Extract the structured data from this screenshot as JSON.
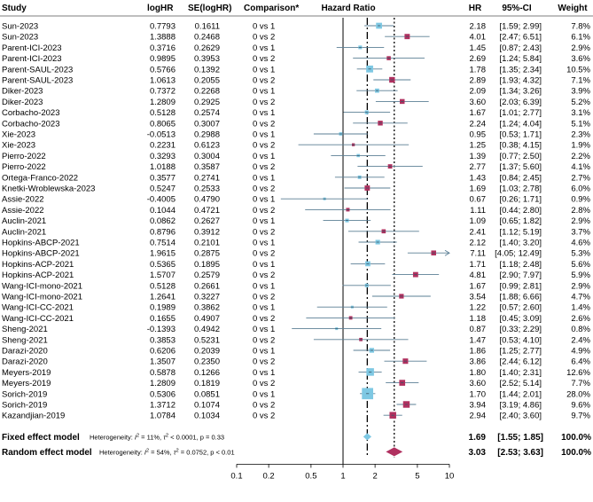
{
  "chart_data": {
    "type": "forest",
    "headers": {
      "study": "Study",
      "loghr": "logHR",
      "se": "SE(logHR)",
      "comparison": "Comparison*",
      "plot": "Hazard Ratio",
      "hr": "HR",
      "ci": "95%-CI",
      "weight": "Weight"
    },
    "x_axis": {
      "scale": "log",
      "range": [
        0.1,
        10
      ],
      "ticks": [
        "0.1",
        "0.2",
        "0.5",
        "1",
        "2",
        "5",
        "10"
      ],
      "reference_line": 1,
      "fixed_line": 1.69,
      "random_line": 3.03
    },
    "colors": {
      "vs1": "#7ec8e3",
      "vs2": "#b0305f",
      "ci_line": "#5b7f95",
      "fixed": "#7ec8e3",
      "random": "#b0305f"
    },
    "rows": [
      {
        "study": "Sun-2023",
        "loghr": "0.7793",
        "se": "0.1611",
        "comparison": "0 vs 1",
        "hr": 2.18,
        "lo": 1.59,
        "hi": 2.99,
        "hr_text": "2.18",
        "ci_text": "[1.59; 2.99]",
        "weight": "7.8%"
      },
      {
        "study": "Sun-2023",
        "loghr": "1.3888",
        "se": "0.2468",
        "comparison": "0 vs 2",
        "hr": 4.01,
        "lo": 2.47,
        "hi": 6.51,
        "hr_text": "4.01",
        "ci_text": "[2.47; 6.51]",
        "weight": "6.1%"
      },
      {
        "study": "Parent-ICI-2023",
        "loghr": "0.3716",
        "se": "0.2629",
        "comparison": "0 vs 1",
        "hr": 1.45,
        "lo": 0.87,
        "hi": 2.43,
        "hr_text": "1.45",
        "ci_text": "[0.87; 2.43]",
        "weight": "2.9%"
      },
      {
        "study": "Parent-ICI-2023",
        "loghr": "0.9895",
        "se": "0.3953",
        "comparison": "0 vs 2",
        "hr": 2.69,
        "lo": 1.24,
        "hi": 5.84,
        "hr_text": "2.69",
        "ci_text": "[1.24; 5.84]",
        "weight": "3.6%"
      },
      {
        "study": "Parent-SAUL-2023",
        "loghr": "0.5766",
        "se": "0.1392",
        "comparison": "0 vs 1",
        "hr": 1.78,
        "lo": 1.35,
        "hi": 2.34,
        "hr_text": "1.78",
        "ci_text": "[1.35; 2.34]",
        "weight": "10.5%"
      },
      {
        "study": "Parent-SAUL-2023",
        "loghr": "1.0613",
        "se": "0.2055",
        "comparison": "0 vs 2",
        "hr": 2.89,
        "lo": 1.93,
        "hi": 4.32,
        "hr_text": "2.89",
        "ci_text": "[1.93; 4.32]",
        "weight": "7.1%"
      },
      {
        "study": "Diker-2023",
        "loghr": "0.7372",
        "se": "0.2268",
        "comparison": "0 vs 1",
        "hr": 2.09,
        "lo": 1.34,
        "hi": 3.26,
        "hr_text": "2.09",
        "ci_text": "[1.34; 3.26]",
        "weight": "3.9%"
      },
      {
        "study": "Diker-2023",
        "loghr": "1.2809",
        "se": "0.2925",
        "comparison": "0 vs 2",
        "hr": 3.6,
        "lo": 2.03,
        "hi": 6.39,
        "hr_text": "3.60",
        "ci_text": "[2.03; 6.39]",
        "weight": "5.2%"
      },
      {
        "study": "Corbacho-2023",
        "loghr": "0.5128",
        "se": "0.2574",
        "comparison": "0 vs 1",
        "hr": 1.67,
        "lo": 1.01,
        "hi": 2.77,
        "hr_text": "1.67",
        "ci_text": "[1.01; 2.77]",
        "weight": "3.1%"
      },
      {
        "study": "Corbacho-2023",
        "loghr": "0.8065",
        "se": "0.3007",
        "comparison": "0 vs 2",
        "hr": 2.24,
        "lo": 1.24,
        "hi": 4.04,
        "hr_text": "2.24",
        "ci_text": "[1.24; 4.04]",
        "weight": "5.1%"
      },
      {
        "study": "Xie-2023",
        "loghr": "-0.0513",
        "se": "0.2988",
        "comparison": "0 vs 1",
        "hr": 0.95,
        "lo": 0.53,
        "hi": 1.71,
        "hr_text": "0.95",
        "ci_text": "[0.53; 1.71]",
        "weight": "2.3%"
      },
      {
        "study": "Xie-2023",
        "loghr": "0.2231",
        "se": "0.6123",
        "comparison": "0 vs 2",
        "hr": 1.25,
        "lo": 0.38,
        "hi": 4.15,
        "hr_text": "1.25",
        "ci_text": "[0.38; 4.15]",
        "weight": "1.9%"
      },
      {
        "study": "Pierro-2022",
        "loghr": "0.3293",
        "se": "0.3004",
        "comparison": "0 vs 1",
        "hr": 1.39,
        "lo": 0.77,
        "hi": 2.5,
        "hr_text": "1.39",
        "ci_text": "[0.77; 2.50]",
        "weight": "2.2%"
      },
      {
        "study": "Pierro-2022",
        "loghr": "1.0188",
        "se": "0.3587",
        "comparison": "0 vs 2",
        "hr": 2.77,
        "lo": 1.37,
        "hi": 5.6,
        "hr_text": "2.77",
        "ci_text": "[1.37; 5.60]",
        "weight": "4.1%"
      },
      {
        "study": "Ortega-Franco-2022",
        "loghr": "0.3577",
        "se": "0.2741",
        "comparison": "0 vs 1",
        "hr": 1.43,
        "lo": 0.84,
        "hi": 2.45,
        "hr_text": "1.43",
        "ci_text": "[0.84; 2.45]",
        "weight": "2.7%"
      },
      {
        "study": "Knetki-Wroblewska-2023",
        "loghr": "0.5247",
        "se": "0.2533",
        "comparison": "0 vs 2",
        "hr": 1.69,
        "lo": 1.03,
        "hi": 2.78,
        "hr_text": "1.69",
        "ci_text": "[1.03; 2.78]",
        "weight": "6.0%"
      },
      {
        "study": "Assie-2022",
        "loghr": "-0.4005",
        "se": "0.4790",
        "comparison": "0 vs 1",
        "hr": 0.67,
        "lo": 0.26,
        "hi": 1.71,
        "hr_text": "0.67",
        "ci_text": "[0.26; 1.71]",
        "weight": "0.9%"
      },
      {
        "study": "Assie-2022",
        "loghr": "0.1044",
        "se": "0.4721",
        "comparison": "0 vs 2",
        "hr": 1.11,
        "lo": 0.44,
        "hi": 2.8,
        "hr_text": "1.11",
        "ci_text": "[0.44; 2.80]",
        "weight": "2.8%"
      },
      {
        "study": "Auclin-2021",
        "loghr": "0.0862",
        "se": "0.2627",
        "comparison": "0 vs 1",
        "hr": 1.09,
        "lo": 0.65,
        "hi": 1.82,
        "hr_text": "1.09",
        "ci_text": "[0.65; 1.82]",
        "weight": "2.9%"
      },
      {
        "study": "Auclin-2021",
        "loghr": "0.8796",
        "se": "0.3912",
        "comparison": "0 vs 2",
        "hr": 2.41,
        "lo": 1.12,
        "hi": 5.19,
        "hr_text": "2.41",
        "ci_text": "[1.12; 5.19]",
        "weight": "3.7%"
      },
      {
        "study": "Hopkins-ABCP-2021",
        "loghr": "0.7514",
        "se": "0.2101",
        "comparison": "0 vs 1",
        "hr": 2.12,
        "lo": 1.4,
        "hi": 3.2,
        "hr_text": "2.12",
        "ci_text": "[1.40; 3.20]",
        "weight": "4.6%"
      },
      {
        "study": "Hopkins-ABCP-2021",
        "loghr": "1.9615",
        "se": "0.2875",
        "comparison": "0 vs 2",
        "hr": 7.11,
        "lo": 4.05,
        "hi": 12.49,
        "hr_text": "7.11",
        "ci_text": "[4.05; 12.49]",
        "weight": "5.3%"
      },
      {
        "study": "Hopkins-ACP-2021",
        "loghr": "0.5365",
        "se": "0.1895",
        "comparison": "0 vs 1",
        "hr": 1.71,
        "lo": 1.18,
        "hi": 2.48,
        "hr_text": "1.71",
        "ci_text": "[1.18; 2.48]",
        "weight": "5.6%"
      },
      {
        "study": "Hopkins-ACP-2021",
        "loghr": "1.5707",
        "se": "0.2579",
        "comparison": "0 vs 2",
        "hr": 4.81,
        "lo": 2.9,
        "hi": 7.97,
        "hr_text": "4.81",
        "ci_text": "[2.90; 7.97]",
        "weight": "5.9%"
      },
      {
        "study": "Wang-ICI-mono-2021",
        "loghr": "0.5128",
        "se": "0.2661",
        "comparison": "0 vs 1",
        "hr": 1.67,
        "lo": 0.99,
        "hi": 2.81,
        "hr_text": "1.67",
        "ci_text": "[0.99; 2.81]",
        "weight": "2.9%"
      },
      {
        "study": "Wang-ICI-mono-2021",
        "loghr": "1.2641",
        "se": "0.3227",
        "comparison": "0 vs 2",
        "hr": 3.54,
        "lo": 1.88,
        "hi": 6.66,
        "hr_text": "3.54",
        "ci_text": "[1.88; 6.66]",
        "weight": "4.7%"
      },
      {
        "study": "Wang-ICI-CC-2021",
        "loghr": "0.1989",
        "se": "0.3862",
        "comparison": "0 vs 1",
        "hr": 1.22,
        "lo": 0.57,
        "hi": 2.6,
        "hr_text": "1.22",
        "ci_text": "[0.57; 2.60]",
        "weight": "1.4%"
      },
      {
        "study": "Wang-ICI-CC-2021",
        "loghr": "0.1655",
        "se": "0.4907",
        "comparison": "0 vs 2",
        "hr": 1.18,
        "lo": 0.45,
        "hi": 3.09,
        "hr_text": "1.18",
        "ci_text": "[0.45; 3.09]",
        "weight": "2.6%"
      },
      {
        "study": "Sheng-2021",
        "loghr": "-0.1393",
        "se": "0.4942",
        "comparison": "0 vs 1",
        "hr": 0.87,
        "lo": 0.33,
        "hi": 2.29,
        "hr_text": "0.87",
        "ci_text": "[0.33; 2.29]",
        "weight": "0.8%"
      },
      {
        "study": "Sheng-2021",
        "loghr": "0.3853",
        "se": "0.5231",
        "comparison": "0 vs 2",
        "hr": 1.47,
        "lo": 0.53,
        "hi": 4.1,
        "hr_text": "1.47",
        "ci_text": "[0.53; 4.10]",
        "weight": "2.4%"
      },
      {
        "study": "Darazi-2020",
        "loghr": "0.6206",
        "se": "0.2039",
        "comparison": "0 vs 1",
        "hr": 1.86,
        "lo": 1.25,
        "hi": 2.77,
        "hr_text": "1.86",
        "ci_text": "[1.25; 2.77]",
        "weight": "4.9%"
      },
      {
        "study": "Darazi-2020",
        "loghr": "1.3507",
        "se": "0.2350",
        "comparison": "0 vs 2",
        "hr": 3.86,
        "lo": 2.44,
        "hi": 6.12,
        "hr_text": "3.86",
        "ci_text": "[2.44; 6.12]",
        "weight": "6.4%"
      },
      {
        "study": "Meyers-2019",
        "loghr": "0.5878",
        "se": "0.1266",
        "comparison": "0 vs 1",
        "hr": 1.8,
        "lo": 1.4,
        "hi": 2.31,
        "hr_text": "1.80",
        "ci_text": "[1.40; 2.31]",
        "weight": "12.6%"
      },
      {
        "study": "Meyers-2019",
        "loghr": "1.2809",
        "se": "0.1819",
        "comparison": "0 vs 2",
        "hr": 3.6,
        "lo": 2.52,
        "hi": 5.14,
        "hr_text": "3.60",
        "ci_text": "[2.52; 5.14]",
        "weight": "7.7%"
      },
      {
        "study": "Sorich-2019",
        "loghr": "0.5306",
        "se": "0.0851",
        "comparison": "0 vs 1",
        "hr": 1.7,
        "lo": 1.44,
        "hi": 2.01,
        "hr_text": "1.70",
        "ci_text": "[1.44; 2.01]",
        "weight": "28.0%"
      },
      {
        "study": "Sorich-2019",
        "loghr": "1.3712",
        "se": "0.1074",
        "comparison": "0 vs 2",
        "hr": 3.94,
        "lo": 3.19,
        "hi": 4.86,
        "hr_text": "3.94",
        "ci_text": "[3.19; 4.86]",
        "weight": "9.6%"
      },
      {
        "study": "Kazandjian-2019",
        "loghr": "1.0784",
        "se": "0.1034",
        "comparison": "0 vs 2",
        "hr": 2.94,
        "lo": 2.4,
        "hi": 3.6,
        "hr_text": "2.94",
        "ci_text": "[2.40; 3.60]",
        "weight": "9.7%"
      }
    ],
    "summary": [
      {
        "label": "Fixed effect model",
        "het_prefix": "Heterogeneity: ",
        "het_i2": "I",
        "het_i2_val": " = 11%, ",
        "het_tau": "τ",
        "het_tau_val": " < 0.0001, p = 0.33",
        "hr": 1.69,
        "lo": 1.55,
        "hi": 1.85,
        "hr_text": "1.69",
        "ci_text": "[1.55; 1.85]",
        "weight": "100.0%",
        "kind": "fixed"
      },
      {
        "label": "Random effect model",
        "het_prefix": "Heterogeneity: ",
        "het_i2": "I",
        "het_i2_val": " = 54%, ",
        "het_tau": "τ",
        "het_tau_val": " = 0.0752, p < 0.01",
        "hr": 3.03,
        "lo": 2.53,
        "hi": 3.63,
        "hr_text": "3.03",
        "ci_text": "[2.53; 3.63]",
        "weight": "100.0%",
        "kind": "random"
      }
    ]
  }
}
